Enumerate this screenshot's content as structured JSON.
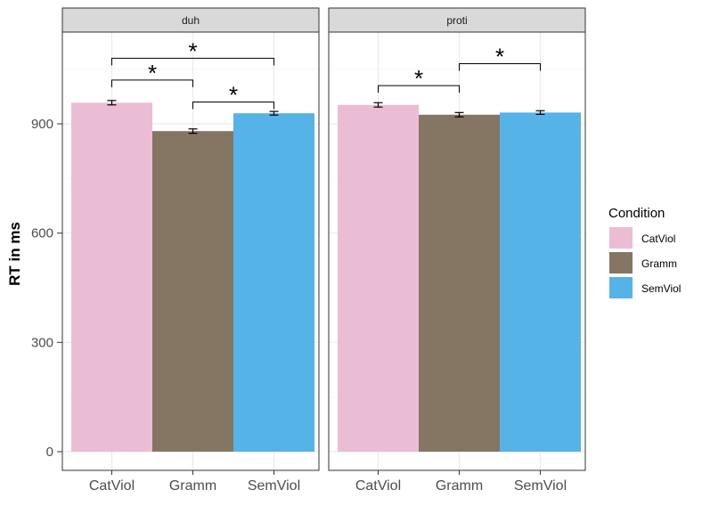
{
  "chart_data": {
    "type": "bar",
    "ylabel": "RT in ms",
    "xlabel": "",
    "ylim": [
      0,
      1150
    ],
    "yticks": [
      0,
      300,
      600,
      900
    ],
    "grid": true,
    "legend_position": "right",
    "legend": {
      "title": "Condition",
      "items": [
        {
          "label": "CatViol",
          "color": "#ebbdd4"
        },
        {
          "label": "Gramm",
          "color": "#857563"
        },
        {
          "label": "SemViol",
          "color": "#55b3e8"
        }
      ]
    },
    "categories": [
      "CatViol",
      "Gramm",
      "SemViol"
    ],
    "panels": [
      {
        "title": "duh",
        "values": [
          958,
          880,
          929
        ],
        "errors": [
          6,
          6,
          5
        ],
        "significance": [
          {
            "from": "CatViol",
            "to": "Gramm",
            "y": 1020,
            "label": "*"
          },
          {
            "from": "Gramm",
            "to": "SemViol",
            "y": 960,
            "label": "*"
          },
          {
            "from": "CatViol",
            "to": "SemViol",
            "y": 1080,
            "label": "*"
          }
        ]
      },
      {
        "title": "proti",
        "values": [
          952,
          925,
          931
        ],
        "errors": [
          6,
          6,
          5
        ],
        "significance": [
          {
            "from": "CatViol",
            "to": "Gramm",
            "y": 1005,
            "label": "*"
          },
          {
            "from": "Gramm",
            "to": "SemViol",
            "y": 1065,
            "label": "*"
          }
        ]
      }
    ]
  }
}
